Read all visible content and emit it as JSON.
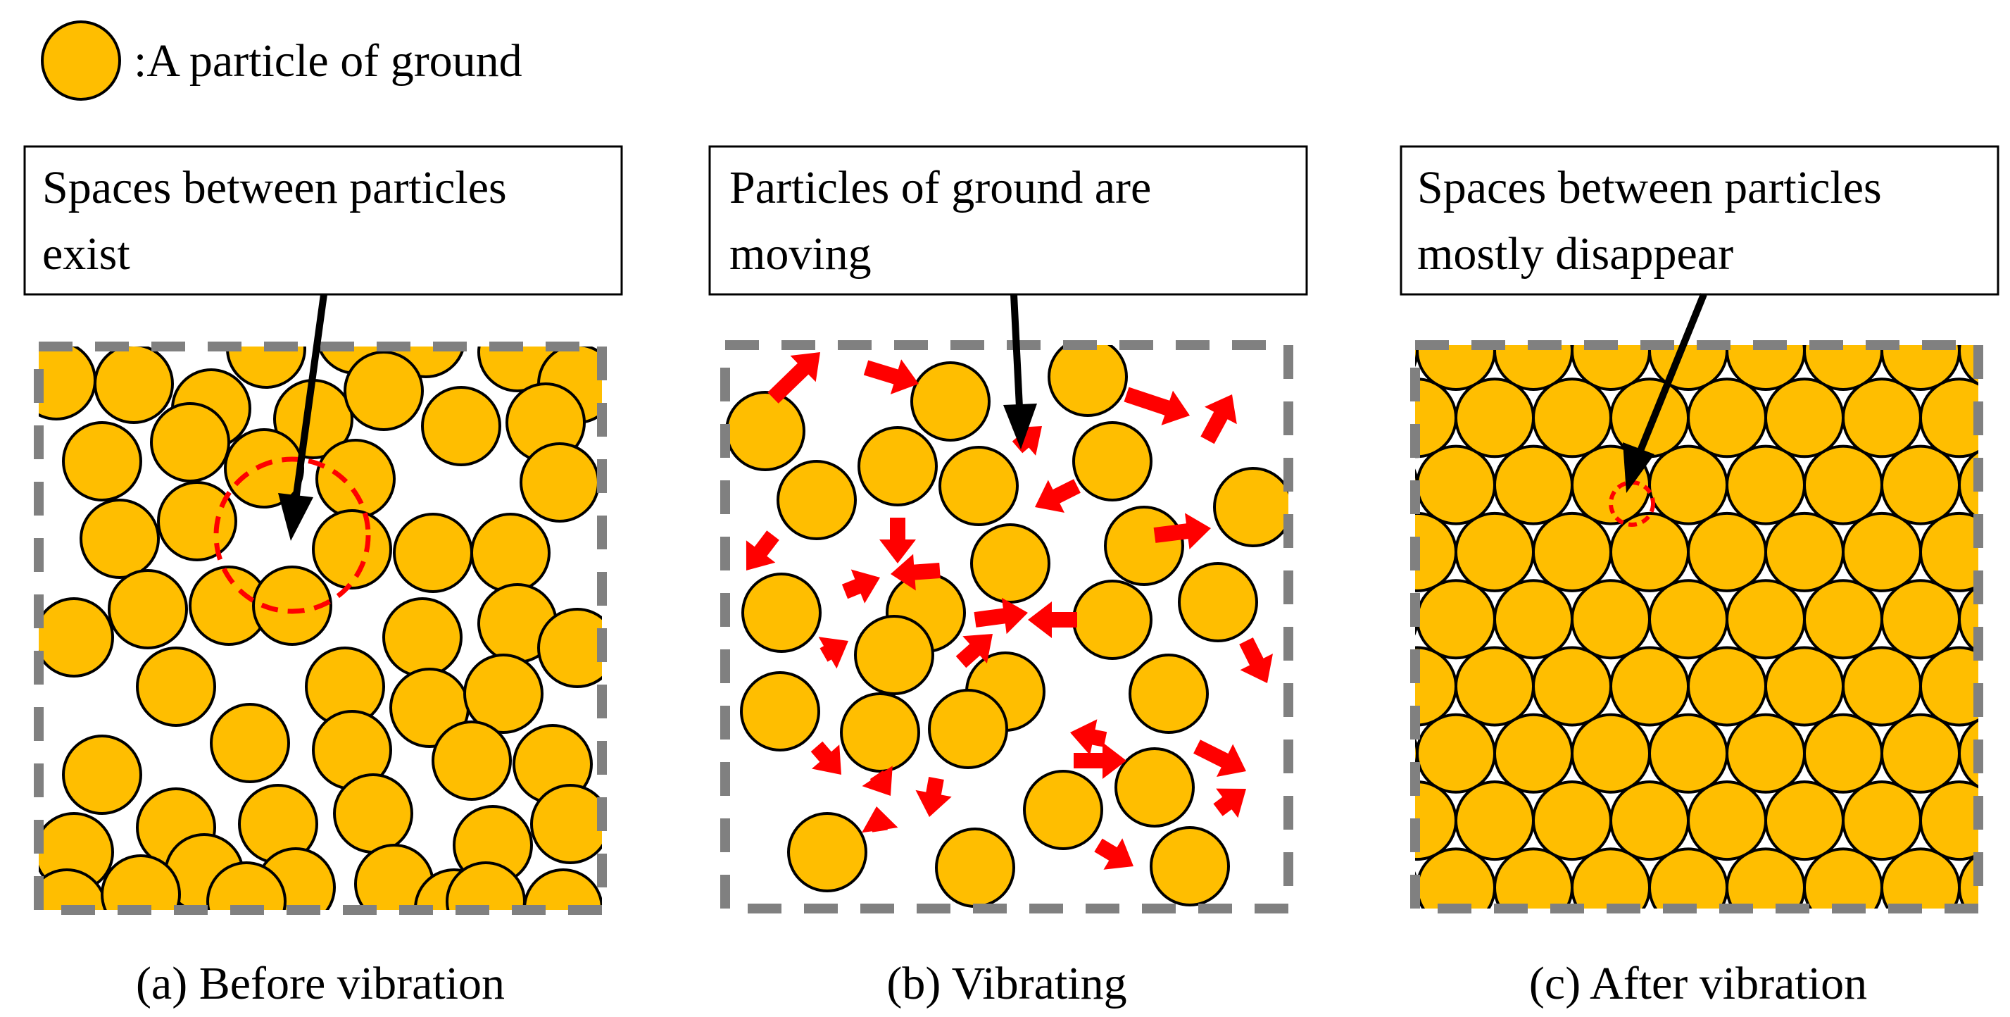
{
  "legend": {
    "label": ":A particle of ground",
    "particle_color": "#FFBE00"
  },
  "panels": [
    {
      "id": "a",
      "note_lines": [
        "Spaces between particles",
        "exist"
      ],
      "caption": "(a) Before vibration"
    },
    {
      "id": "b",
      "note_lines": [
        "Particles of ground are",
        "moving"
      ],
      "caption": "(b) Vibrating"
    },
    {
      "id": "c",
      "note_lines": [
        "Spaces between particles",
        "mostly disappear"
      ],
      "caption": "(c) After vibration"
    }
  ],
  "colors": {
    "particle": "#FFBE00",
    "outline": "#000000",
    "container_border": "#808080",
    "motion_arrow": "#FF0000",
    "highlight_circle": "#FF0000"
  }
}
